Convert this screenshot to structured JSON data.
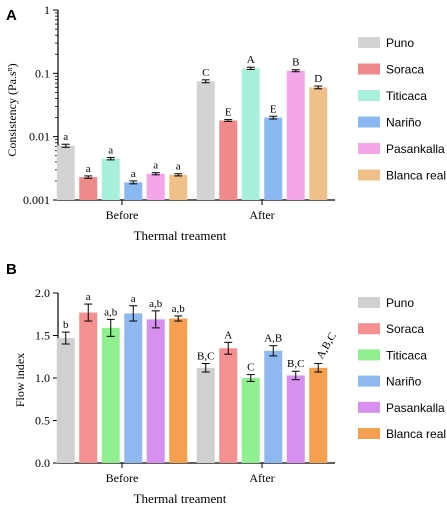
{
  "chart_data": [
    {
      "panel_label": "A",
      "type": "bar",
      "scale": "log",
      "ylabel": "Consistency (Pa.s",
      "ylabel_sup": "n",
      "ylabel_end": ")",
      "xlabel": "Thermal treament",
      "categories": [
        "Before",
        "After"
      ],
      "ylim": [
        0.001,
        1
      ],
      "yticks": [
        0.001,
        0.01,
        0.1,
        1
      ],
      "ytick_labels": [
        "0.001",
        "0.01",
        "0.1",
        "1"
      ],
      "legend_position": "right",
      "series": [
        {
          "name": "Puno",
          "color": "#d3d3d3",
          "values": [
            0.0072,
            0.075
          ],
          "errors": [
            0.0004,
            0.004
          ],
          "labels": [
            "a",
            "C"
          ]
        },
        {
          "name": "Soraca",
          "color": "#f08a8a",
          "values": [
            0.0023,
            0.018
          ],
          "errors": [
            0.0001,
            0.0006
          ],
          "labels": [
            "a",
            "E"
          ]
        },
        {
          "name": "Titicaca",
          "color": "#a8f0dc",
          "values": [
            0.0045,
            0.12
          ],
          "errors": [
            0.0002,
            0.005
          ],
          "labels": [
            "a",
            "A"
          ]
        },
        {
          "name": "Nariño",
          "color": "#8ab8f0",
          "values": [
            0.0019,
            0.02
          ],
          "errors": [
            0.0001,
            0.001
          ],
          "labels": [
            "a",
            "E"
          ]
        },
        {
          "name": "Pasankalla",
          "color": "#f5a6e8",
          "values": [
            0.0026,
            0.11
          ],
          "errors": [
            0.0001,
            0.004
          ],
          "labels": [
            "a",
            "B"
          ]
        },
        {
          "name": "Blanca real",
          "color": "#f0c08a",
          "values": [
            0.0025,
            0.06
          ],
          "errors": [
            0.0001,
            0.003
          ],
          "labels": [
            "a",
            "D"
          ]
        }
      ]
    },
    {
      "panel_label": "B",
      "type": "bar",
      "scale": "linear",
      "ylabel": "Flow index",
      "xlabel": "Thermal treament",
      "categories": [
        "Before",
        "After"
      ],
      "ylim": [
        0,
        2.0
      ],
      "yticks": [
        0,
        0.5,
        1.0,
        1.5,
        2.0
      ],
      "ytick_labels": [
        "0.0",
        "0.5",
        "1.0",
        "1.5",
        "2.0"
      ],
      "legend_position": "right",
      "series": [
        {
          "name": "Puno",
          "color": "#d0d0d0",
          "values": [
            1.47,
            1.12
          ],
          "errors": [
            0.07,
            0.05
          ],
          "labels": [
            "b",
            "B,C"
          ]
        },
        {
          "name": "Soraca",
          "color": "#f49090",
          "values": [
            1.77,
            1.35
          ],
          "errors": [
            0.1,
            0.07
          ],
          "labels": [
            "a",
            "A"
          ]
        },
        {
          "name": "Titicaca",
          "color": "#90f090",
          "values": [
            1.59,
            1.0
          ],
          "errors": [
            0.1,
            0.04
          ],
          "labels": [
            "a,b",
            "C"
          ]
        },
        {
          "name": "Nariño",
          "color": "#90b8f0",
          "values": [
            1.76,
            1.32
          ],
          "errors": [
            0.09,
            0.06
          ],
          "labels": [
            "a",
            "A,B"
          ]
        },
        {
          "name": "Pasankalla",
          "color": "#d890f0",
          "values": [
            1.69,
            1.03
          ],
          "errors": [
            0.1,
            0.05
          ],
          "labels": [
            "a,b",
            "B,C"
          ]
        },
        {
          "name": "Blanca real",
          "color": "#f5a050",
          "values": [
            1.7,
            1.12
          ],
          "errors": [
            0.03,
            0.05
          ],
          "labels": [
            "a,b",
            "A,B,C"
          ]
        }
      ]
    }
  ]
}
